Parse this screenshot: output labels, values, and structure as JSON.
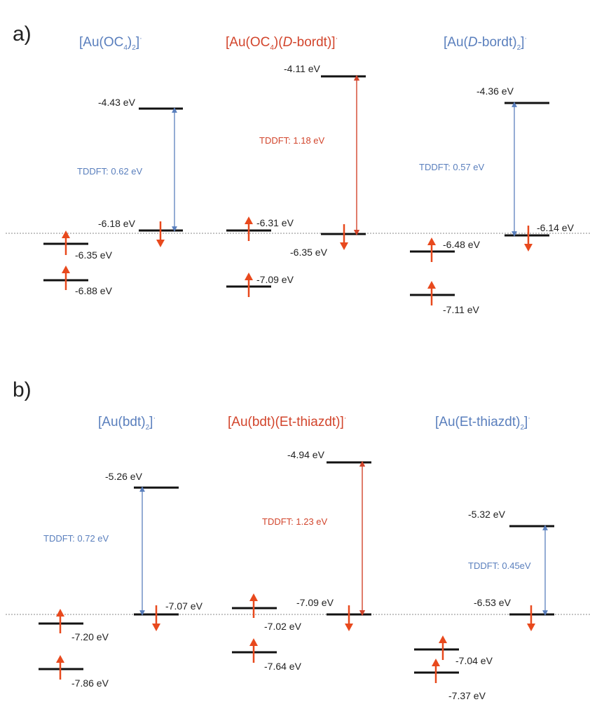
{
  "colors": {
    "blue": "#5a7fbd",
    "red": "#d2452c",
    "orange_arrow": "#e8491d",
    "level": "#111111",
    "dash": "#888888"
  },
  "panel_a": {
    "label": "a)",
    "titles": [
      {
        "parts": [
          "[Au(OC",
          "4",
          ")",
          "2",
          "]",
          "·"
        ],
        "color": "blue"
      },
      {
        "parts": [
          "[Au(OC",
          "4",
          ")(",
          "D",
          "-bordt)]",
          "·"
        ],
        "color": "red"
      },
      {
        "parts": [
          "[Au(",
          "D",
          "-bordt)",
          "2",
          "]",
          "·"
        ],
        "color": "blue"
      }
    ],
    "energies": [
      "-4.43 eV",
      "-6.18 eV",
      "-6.35 eV",
      "-6.88 eV",
      "-4.11 eV",
      "-6.31 eV",
      "-6.35 eV",
      "-7.09 eV",
      "-4.36 eV",
      "-6.14 eV",
      "-6.48 eV",
      "-7.11 eV"
    ],
    "tddft": [
      "TDDFT: 0.62 eV",
      "TDDFT: 1.18 eV",
      "TDDFT: 0.57 eV"
    ]
  },
  "panel_b": {
    "label": "b)",
    "titles": [
      {
        "parts": [
          "[Au(bdt)",
          "2",
          "]",
          "·"
        ],
        "color": "blue"
      },
      {
        "parts": [
          "[Au(bdt)(Et-thiazdt)]",
          "·"
        ],
        "color": "red"
      },
      {
        "parts": [
          "[Au(Et-thiazdt)",
          "2",
          "]",
          "·"
        ],
        "color": "blue"
      }
    ],
    "energies": [
      "-5.26 eV",
      "-7.07 eV",
      "-7.20 eV",
      "-7.86 eV",
      "-4.94 eV",
      "-7.09 eV",
      "-7.02 eV",
      "-7.64 eV",
      "-5.32 eV",
      "-6.53 eV",
      "-7.04 eV",
      "-7.37 eV"
    ],
    "tddft": [
      "TDDFT: 0.72 eV",
      "TDDFT: 1.23 eV",
      "TDDFT: 0.45eV"
    ]
  }
}
